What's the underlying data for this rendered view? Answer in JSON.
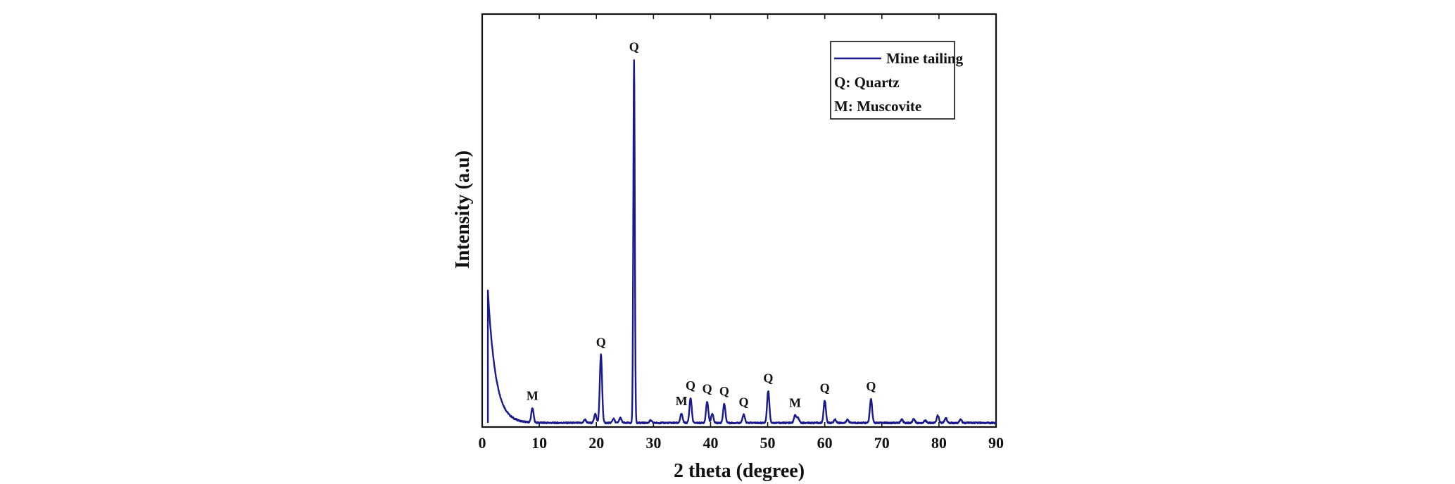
{
  "chart_data": {
    "type": "line",
    "title": "",
    "xlabel": "2 theta (degree)",
    "ylabel": "Intensity (a.u)",
    "xlim": [
      0,
      90
    ],
    "ylim": [
      0,
      1000
    ],
    "x_ticks": [
      "0",
      "10",
      "20",
      "30",
      "40",
      "50",
      "60",
      "70",
      "80",
      "90"
    ],
    "y_ticks_shown": false,
    "grid": false,
    "color": "#1a1a8c",
    "legend": {
      "position": "top-right",
      "series_label": "Mine tailing",
      "notes": [
        "Q: Quartz",
        "M: Muscovite"
      ]
    },
    "series": [
      {
        "name": "Mine tailing",
        "baseline": 10,
        "low_angle_background": {
          "start_x": 1.0,
          "start_y": 330
        },
        "peaks": [
          {
            "x": 8.8,
            "y": 45
          },
          {
            "x": 18.0,
            "y": 18
          },
          {
            "x": 19.8,
            "y": 32
          },
          {
            "x": 20.8,
            "y": 175
          },
          {
            "x": 23.0,
            "y": 20
          },
          {
            "x": 24.2,
            "y": 22
          },
          {
            "x": 26.6,
            "y": 890
          },
          {
            "x": 29.5,
            "y": 16
          },
          {
            "x": 34.9,
            "y": 32
          },
          {
            "x": 36.5,
            "y": 70
          },
          {
            "x": 39.4,
            "y": 62
          },
          {
            "x": 40.3,
            "y": 32
          },
          {
            "x": 42.4,
            "y": 56
          },
          {
            "x": 45.8,
            "y": 30
          },
          {
            "x": 50.1,
            "y": 88
          },
          {
            "x": 54.8,
            "y": 28
          },
          {
            "x": 55.3,
            "y": 22
          },
          {
            "x": 60.0,
            "y": 64
          },
          {
            "x": 61.8,
            "y": 18
          },
          {
            "x": 64.0,
            "y": 18
          },
          {
            "x": 68.1,
            "y": 68
          },
          {
            "x": 73.5,
            "y": 18
          },
          {
            "x": 75.6,
            "y": 20
          },
          {
            "x": 77.6,
            "y": 16
          },
          {
            "x": 79.8,
            "y": 28
          },
          {
            "x": 81.2,
            "y": 22
          },
          {
            "x": 83.8,
            "y": 18
          }
        ]
      }
    ],
    "annotations": [
      {
        "text": "M",
        "x": 8.8,
        "y": 45
      },
      {
        "text": "Q",
        "x": 20.8,
        "y": 175
      },
      {
        "text": "Q",
        "x": 26.6,
        "y": 890
      },
      {
        "text": "M",
        "x": 34.9,
        "y": 32
      },
      {
        "text": "Q",
        "x": 36.5,
        "y": 70
      },
      {
        "text": "Q",
        "x": 39.4,
        "y": 62
      },
      {
        "text": "Q",
        "x": 42.4,
        "y": 56
      },
      {
        "text": "Q",
        "x": 45.8,
        "y": 30
      },
      {
        "text": "Q",
        "x": 50.1,
        "y": 88
      },
      {
        "text": "M",
        "x": 54.8,
        "y": 28
      },
      {
        "text": "Q",
        "x": 60.0,
        "y": 64
      },
      {
        "text": "Q",
        "x": 68.1,
        "y": 68
      }
    ]
  }
}
